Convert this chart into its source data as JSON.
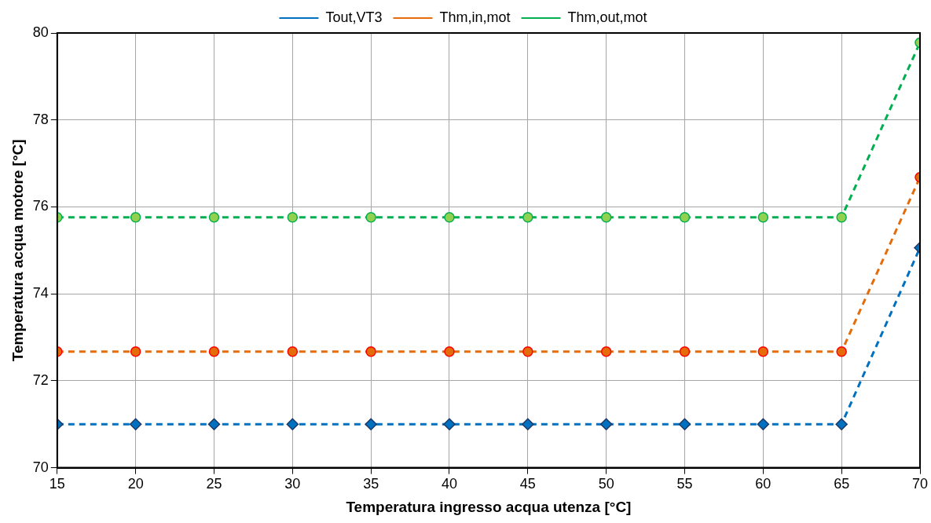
{
  "chart_data": {
    "type": "line",
    "xlabel": "Temperatura ingresso acqua utenza [°C]",
    "ylabel": "Temperatura acqua motore [°C]",
    "x": [
      15,
      20,
      25,
      30,
      35,
      40,
      45,
      50,
      55,
      60,
      65,
      70
    ],
    "series": [
      {
        "name": "Tout,VT3",
        "color": "#0070c0",
        "marker": "diamond",
        "values": [
          71.0,
          71.0,
          71.0,
          71.0,
          71.0,
          71.0,
          71.0,
          71.0,
          71.0,
          71.0,
          71.0,
          75.06
        ]
      },
      {
        "name": "Thm,in,mot",
        "color": "#e46c0a",
        "marker": "circle",
        "values": [
          72.67,
          72.67,
          72.67,
          72.67,
          72.67,
          72.67,
          72.67,
          72.67,
          72.67,
          72.67,
          72.67,
          76.68
        ]
      },
      {
        "name": "Thm,out,mot",
        "color": "#00b050",
        "marker": "circle",
        "values": [
          75.76,
          75.76,
          75.76,
          75.76,
          75.76,
          75.76,
          75.76,
          75.76,
          75.76,
          75.76,
          75.76,
          79.78
        ]
      }
    ],
    "xlim": [
      15,
      70
    ],
    "xticks": [
      15,
      20,
      25,
      30,
      35,
      40,
      45,
      50,
      55,
      60,
      65,
      70
    ],
    "ylim": [
      70,
      80
    ],
    "yticks": [
      70,
      72,
      74,
      76,
      78,
      80
    ],
    "grid": true,
    "legend": "top",
    "line_style": "dashed"
  }
}
